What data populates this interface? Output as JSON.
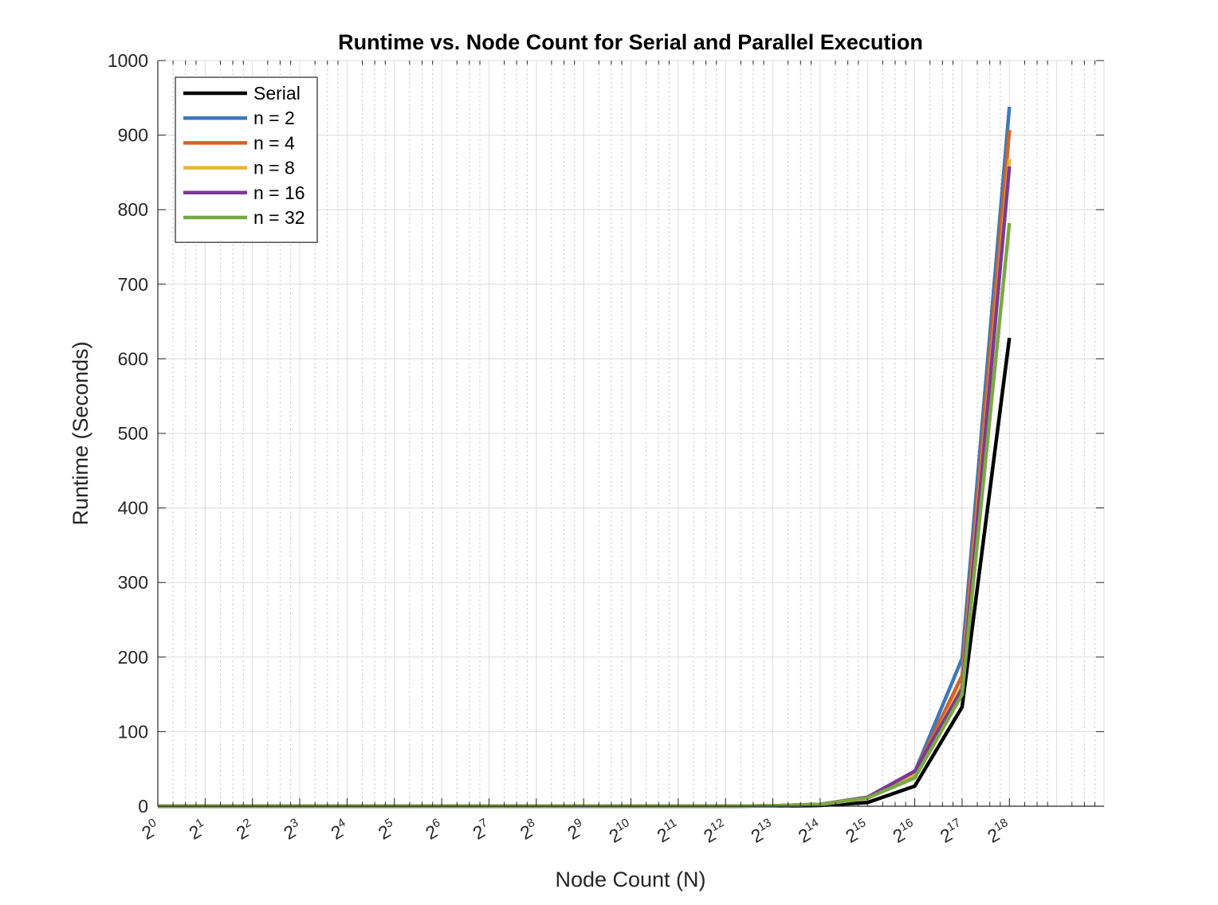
{
  "chart_data": {
    "type": "line",
    "title": "Runtime vs. Node Count for Serial and Parallel Execution",
    "xlabel": "Node Count (N)",
    "ylabel": "Runtime (Seconds)",
    "x_scale": "log2",
    "x": [
      1,
      2,
      4,
      8,
      16,
      32,
      64,
      128,
      256,
      512,
      1024,
      2048,
      4096,
      8192,
      16384,
      32768,
      65536,
      131072,
      262144
    ],
    "x_tick_labels": [
      {
        "base": "2",
        "exp": "0"
      },
      {
        "base": "2",
        "exp": "1"
      },
      {
        "base": "2",
        "exp": "2"
      },
      {
        "base": "2",
        "exp": "3"
      },
      {
        "base": "2",
        "exp": "4"
      },
      {
        "base": "2",
        "exp": "5"
      },
      {
        "base": "2",
        "exp": "6"
      },
      {
        "base": "2",
        "exp": "7"
      },
      {
        "base": "2",
        "exp": "8"
      },
      {
        "base": "2",
        "exp": "9"
      },
      {
        "base": "2",
        "exp": "10"
      },
      {
        "base": "2",
        "exp": "11"
      },
      {
        "base": "2",
        "exp": "12"
      },
      {
        "base": "2",
        "exp": "13"
      },
      {
        "base": "2",
        "exp": "14"
      },
      {
        "base": "2",
        "exp": "15"
      },
      {
        "base": "2",
        "exp": "16"
      },
      {
        "base": "2",
        "exp": "17"
      },
      {
        "base": "2",
        "exp": "18"
      }
    ],
    "xlim": [
      1,
      1048576
    ],
    "ylim": [
      0,
      1000
    ],
    "y_ticks": [
      0,
      100,
      200,
      300,
      400,
      500,
      600,
      700,
      800,
      900,
      1000
    ],
    "y_tick_labels": [
      "0",
      "100",
      "200",
      "300",
      "400",
      "500",
      "600",
      "700",
      "800",
      "900",
      "1000"
    ],
    "grid": true,
    "minor_grid": true,
    "legend_position": "top-left",
    "series": [
      {
        "name": "Serial",
        "color": "#000000",
        "values": [
          0,
          0,
          0,
          0,
          0,
          0,
          0,
          0,
          0,
          0,
          0,
          0,
          0,
          0.3,
          1,
          5,
          27,
          133,
          628
        ]
      },
      {
        "name": "n = 2",
        "color": "#3f78b8",
        "values": [
          0,
          0,
          0,
          0,
          0,
          0,
          0,
          0,
          0,
          0,
          0,
          0,
          0,
          0.5,
          2.5,
          11,
          46,
          198,
          938
        ]
      },
      {
        "name": "n = 4",
        "color": "#d2622b",
        "values": [
          0,
          0,
          0,
          0,
          0,
          0,
          0,
          0,
          0,
          0,
          0,
          0,
          0,
          0.5,
          2.5,
          11,
          45,
          175,
          907
        ]
      },
      {
        "name": "n = 8",
        "color": "#e6b43c",
        "values": [
          0,
          0,
          0,
          0,
          0,
          0,
          0,
          0,
          0,
          0,
          0,
          0,
          0,
          0.5,
          2.5,
          10.5,
          43,
          162,
          868
        ]
      },
      {
        "name": "n = 16",
        "color": "#7b3a91",
        "values": [
          0,
          0,
          0,
          0,
          0,
          0,
          0,
          0,
          0,
          0,
          0,
          0,
          0,
          0.5,
          2.5,
          12,
          47,
          157,
          858
        ]
      },
      {
        "name": "n = 32",
        "color": "#7aa944",
        "values": [
          0,
          0,
          0,
          0,
          0,
          0,
          0,
          0,
          0,
          0,
          0,
          0,
          0,
          0.5,
          2.5,
          11,
          38,
          150,
          782
        ]
      }
    ]
  }
}
